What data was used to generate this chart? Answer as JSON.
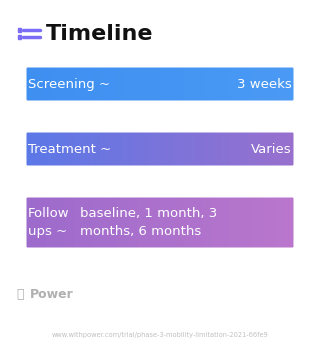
{
  "title": "Timeline",
  "title_fontsize": 16,
  "title_color": "#111111",
  "icon_color": "#7B6CF6",
  "background_color": "#ffffff",
  "rows": [
    {
      "label": "Screening ~",
      "value": "3 weeks",
      "color_left": "#3D8EF0",
      "color_right": "#4A9AF5",
      "text_color": "#ffffff",
      "font_size": 9.5,
      "multiline": false
    },
    {
      "label": "Treatment ~",
      "value": "Varies",
      "color_left": "#5878E8",
      "color_right": "#9B6FCC",
      "text_color": "#ffffff",
      "font_size": 9.5,
      "multiline": false
    },
    {
      "label_left": "Follow\nups ~",
      "value": "baseline, 1 month, 3\nmonths, 6 months",
      "color_left": "#9B6ACC",
      "color_right": "#BB77CC",
      "text_color": "#ffffff",
      "font_size": 9.5,
      "multiline": true
    }
  ],
  "watermark_text": "Power",
  "watermark_color": "#b0b0b0",
  "footer_text": "www.withpower.com/trial/phase-3-mobility-limitation-2021-66fe9",
  "footer_color": "#c0c0c0",
  "footer_fontsize": 4.8
}
